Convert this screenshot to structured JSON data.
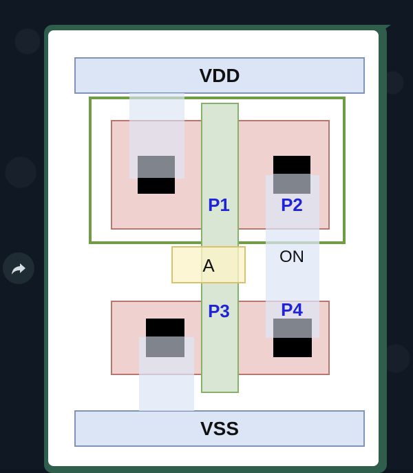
{
  "diagram": {
    "rails": {
      "top": "VDD",
      "bottom": "VSS"
    },
    "gate_input": "A",
    "transistors": {
      "p1": "P1",
      "p2": "P2",
      "p3": "P3",
      "p4": "P4"
    },
    "state_label": "ON"
  },
  "icons": {
    "forward": "share-forward-icon"
  },
  "colors": {
    "rail_fill": "#dbe5f5",
    "rail_stroke": "#7f93b8",
    "well_stroke": "#6f9d46",
    "diffusion_fill": "#efd2cf",
    "diffusion_stroke": "#b9766f",
    "poly_fill": "#d9e6d3",
    "poly_stroke": "#84b26a",
    "input_fill": "#fbf4c9",
    "input_stroke": "#d6c46d",
    "label_blue": "#1f24d9"
  }
}
